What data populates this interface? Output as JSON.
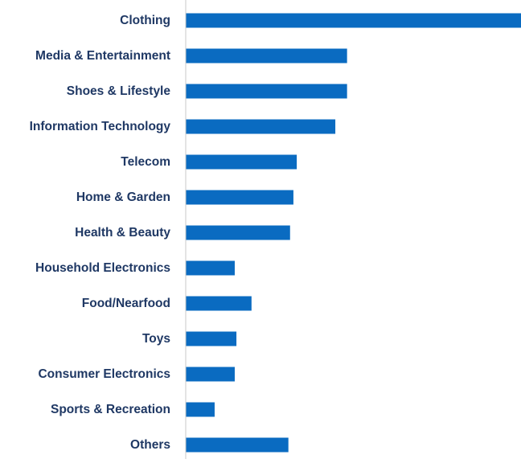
{
  "chart_data": {
    "type": "bar",
    "orientation": "horizontal",
    "categories": [
      "Clothing",
      "Media & Entertainment",
      "Shoes & Lifestyle",
      "Information Technology",
      "Telecom",
      "Home & Garden",
      "Health & Beauty",
      "Household Electronics",
      "Food/Nearfood",
      "Toys",
      "Consumer Electronics",
      "Sports & Recreation",
      "Others"
    ],
    "values": [
      100,
      48,
      48,
      44.5,
      33,
      32,
      31,
      14.5,
      19.5,
      15,
      14.5,
      8.5,
      30.5
    ],
    "xlim": [
      0,
      100
    ],
    "title": "",
    "xlabel": "",
    "ylabel": "",
    "grid": false,
    "legend": "none",
    "bar_color": "#0A6BC1",
    "axis_color": "#C8C8C8",
    "label_color": "#1F3864"
  }
}
